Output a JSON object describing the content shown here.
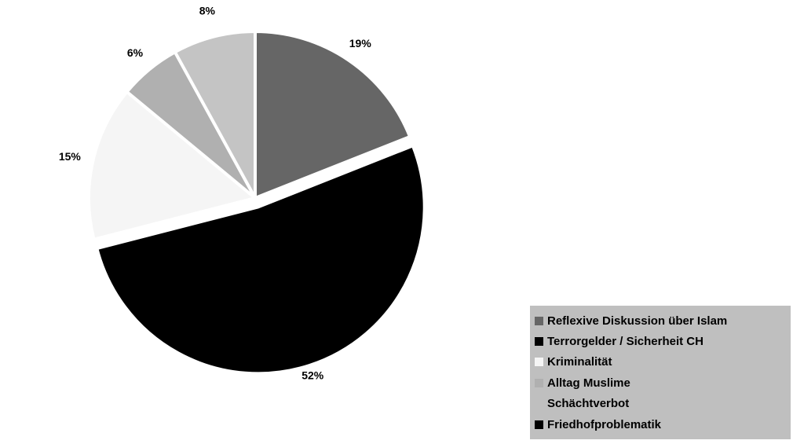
{
  "chart_data": {
    "type": "pie",
    "title": "",
    "slices": [
      {
        "label": "Reflexive Diskussion über Islam",
        "value": 19,
        "display": "19%",
        "color": "#666666",
        "explode": 0
      },
      {
        "label": "Terrorgelder / Sicherheit CH",
        "value": 52,
        "display": "52%",
        "color": "#000000",
        "explode": 12
      },
      {
        "label": "Kriminalität",
        "value": 15,
        "display": "15%",
        "color": "#f5f5f5",
        "explode": 0
      },
      {
        "label": "Alltag Muslime",
        "value": 6,
        "display": "6%",
        "color": "#b0b0b0",
        "explode": 0
      },
      {
        "label": "Schächtverbot",
        "value": 8,
        "display": "8%",
        "color": "#c4c4c4",
        "explode": 0
      }
    ],
    "legend": {
      "placement": "bottom-right",
      "entries": [
        {
          "label": "Reflexive Diskussion über Islam",
          "color": "#666666",
          "show_swatch": true
        },
        {
          "label": "Terrorgelder / Sicherheit CH",
          "color": "#000000",
          "show_swatch": true
        },
        {
          "label": "Kriminalität",
          "color": "#f5f5f5",
          "show_swatch": true
        },
        {
          "label": "Alltag Muslime",
          "color": "#b0b0b0",
          "show_swatch": true
        },
        {
          "label": "Schächtverbot",
          "color": "#c4c4c4",
          "show_swatch": false
        },
        {
          "label": "Friedhofproblematik",
          "color": "#000000",
          "show_swatch": true
        }
      ],
      "background": "#bfbfbf"
    }
  }
}
